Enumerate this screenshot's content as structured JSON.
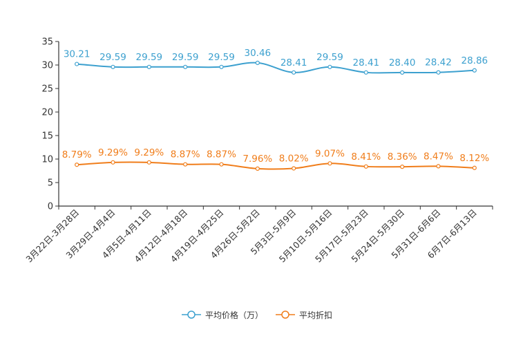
{
  "chart_data": {
    "type": "line",
    "title": "",
    "xlabel": "",
    "ylabel": "",
    "ylim": [
      0,
      35
    ],
    "yticks": [
      0,
      5,
      10,
      15,
      20,
      25,
      30,
      35
    ],
    "grid": false,
    "legend_position": "bottom",
    "categories": [
      "3月22日-3月28日",
      "3月29日-4月4日",
      "4月5日-4月11日",
      "4月12日-4月18日",
      "4月19日-4月25日",
      "4月26日-5月2日",
      "5月3日-5月9日",
      "5月10日-5月16日",
      "5月17日-5月23日",
      "5月24日-5月30日",
      "5月31日-6月6日",
      "6月7日-6月13日"
    ],
    "series": [
      {
        "name": "平均价格（万）",
        "color": "#3ca0cf",
        "values": [
          30.21,
          29.59,
          29.59,
          29.59,
          29.59,
          30.46,
          28.41,
          29.59,
          28.41,
          28.4,
          28.42,
          28.86
        ],
        "labels": [
          "30.21",
          "29.59",
          "29.59",
          "29.59",
          "29.59",
          "30.46",
          "28.41",
          "29.59",
          "28.41",
          "28.40",
          "28.42",
          "28.86"
        ]
      },
      {
        "name": "平均折扣",
        "color": "#f07d1a",
        "values": [
          8.79,
          9.29,
          9.29,
          8.87,
          8.87,
          7.96,
          8.02,
          9.07,
          8.41,
          8.36,
          8.47,
          8.12
        ],
        "labels": [
          "8.79%",
          "9.29%",
          "9.29%",
          "8.87%",
          "8.87%",
          "7.96%",
          "8.02%",
          "9.07%",
          "8.41%",
          "8.36%",
          "8.47%",
          "8.12%"
        ]
      }
    ]
  }
}
